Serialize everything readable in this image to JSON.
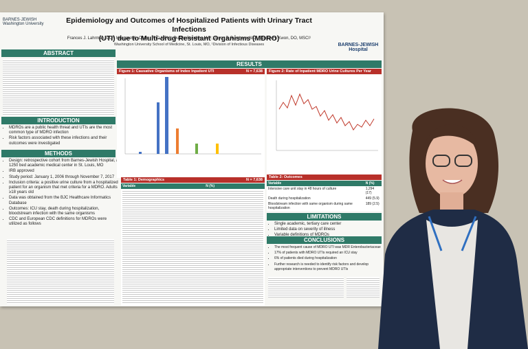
{
  "poster": {
    "title_line1": "Epidemiology and Outcomes of Hospitalized Patients with Urinary Tract Infections",
    "title_line2": "(UTI) due to Multi-drug Resistant Organisms (MDRO)",
    "authors": "Frances J. Lahrman, DO¹; Margaret A. Olsen, PhD,MPH¹; Dustin Stwalley, MA¹; Jason P. Burnham, MD¹; Jennie H. Kwon, DO, MSCI¹",
    "affiliation": "Washington University School of Medicine, St. Louis, MO, ¹Division of Infectious Diseases",
    "logo": "BARNES-JEWISH Hospital",
    "abstract": {
      "heading": "ABSTRACT"
    },
    "introduction": {
      "heading": "INTRODUCTION",
      "items": [
        "MDROs are a public health threat and UTIs are the most common type of MDRO infection",
        "Risk factors associated with these infections and their outcomes were investigated"
      ]
    },
    "methods": {
      "heading": "METHODS",
      "items": [
        "Design: retrospective cohort from Barnes-Jewish Hospital, a 1250 bed academic medical center in St. Louis, MO",
        "IRB approved",
        "Study period: January 1, 2006 through November 7, 2017",
        "Inclusion criteria: a positive urine culture from a hospitalized patient for an organism that met criteria for a MDRO. Adults ≥18 years old",
        "Data was obtained from the BJC Healthcare Informatics Database",
        "Outcomes: ICU stay, death during hospitalization, bloodstream infection with the same organisms",
        "CDC and European CDC definitions for MDROs were utilized as follows"
      ]
    },
    "results": {
      "heading": "RESULTS",
      "figure1": {
        "title": "Figure 1: Causative Organisms of Index Inpatient UTI",
        "n": "N = 7,638"
      },
      "figure2": {
        "title": "Figure 2: Rate of Inpatient MDRO Urine Cultures Per Year"
      },
      "table1": {
        "title": "Table 1: Demographics",
        "n": "N = 7,638",
        "columns": [
          "Variable",
          "N (%)"
        ]
      },
      "table2": {
        "title": "Table 2: Outcomes",
        "columns": [
          "Variable",
          "N (%)"
        ],
        "rows": [
          [
            "Intensive care unit stay in 48 hours of culture",
            "1,294 (17)"
          ],
          [
            "Death during hospitalization",
            "449 (5.9)"
          ],
          [
            "Bloodstream infection with same organism during same hospitalization",
            "189 (2.5)"
          ]
        ]
      }
    },
    "limitations": {
      "heading": "LIMITATIONS",
      "items": [
        "Single academic, tertiary care center",
        "Limited data on severity of illness",
        "Variable definitions of MDROs"
      ]
    },
    "conclusions": {
      "heading": "CONCLUSIONS",
      "items": [
        "The most frequent cause of MDRO UTI was MDR Enterobacteriaceae",
        "17% of patients with MDRO UTIs required an ICU stay",
        "6% of patients died during hospitalization",
        "Further research is needed to identify risk factors and develop appropriate interventions to prevent MDRO UTIs"
      ]
    }
  }
}
